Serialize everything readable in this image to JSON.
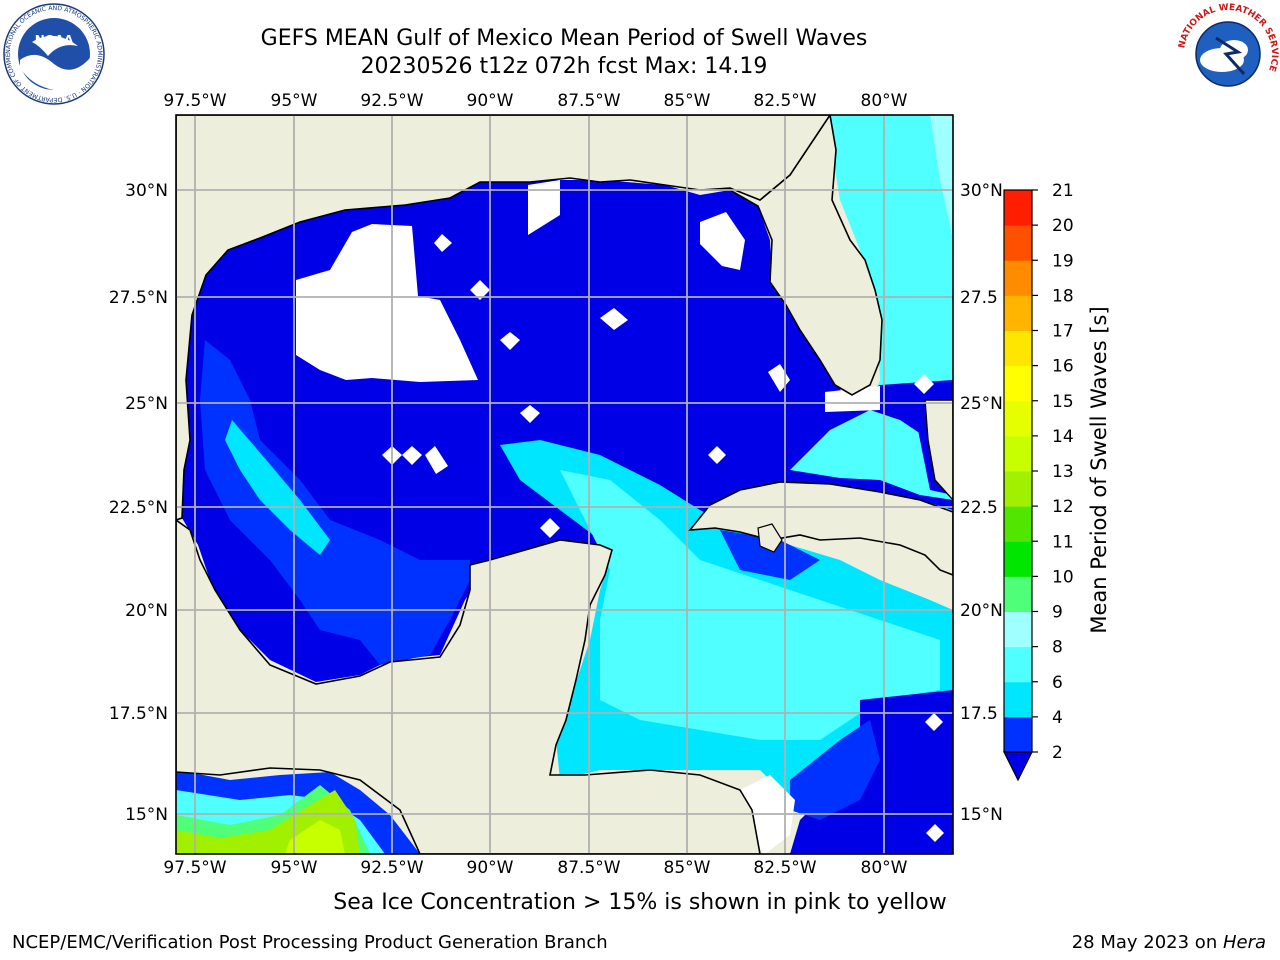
{
  "title": {
    "line1": "GEFS MEAN Gulf of Mexico Mean Period of Swell Waves",
    "line2": "20230526 t12z 072h fcst   Max: 14.19"
  },
  "logos": {
    "left": {
      "name": "noaa-logo",
      "text": "NOAA",
      "ring_text": "NATIONAL OCEANIC AND ATMOSPHERIC ADMINISTRATION · U.S. DEPARTMENT OF COMMERCE"
    },
    "right": {
      "name": "nws-logo",
      "ring_text": "NATIONAL WEATHER SERVICE"
    }
  },
  "map": {
    "lon_labels": [
      "97.5°W",
      "95°W",
      "92.5°W",
      "90°W",
      "87.5°W",
      "85°W",
      "82.5°W",
      "80°W"
    ],
    "lat_labels_left": [
      "30°N",
      "27.5°N",
      "25°N",
      "22.5°N",
      "20°N",
      "17.5°N",
      "15°N"
    ],
    "lat_labels_right": [
      "30°N",
      "27.5",
      "25°N",
      "22.5",
      "20°N",
      "17.5",
      "15°N"
    ],
    "colors": {
      "land": "#eeeedd",
      "coast": "#000000",
      "grid": "#b0b0b0",
      "missing": "#ffffff"
    }
  },
  "colorbar": {
    "label": "Mean Period of Swell Waves [s]",
    "ticks": [
      "2",
      "4",
      "6",
      "8",
      "9",
      "10",
      "11",
      "12",
      "13",
      "14",
      "15",
      "16",
      "17",
      "18",
      "19",
      "20",
      "21"
    ],
    "colors": [
      "#0032ff",
      "#00e6ff",
      "#50ffff",
      "#a0ffff",
      "#50ff78",
      "#00e600",
      "#50e600",
      "#a0f000",
      "#c8ff00",
      "#e6ff00",
      "#ffff00",
      "#ffe600",
      "#ffb400",
      "#ff8c00",
      "#ff5000",
      "#ff1e00"
    ],
    "extend_color": "#0000e6"
  },
  "note": "Sea Ice Concentration > 15% is shown in pink to yellow",
  "footer": {
    "left": "NCEP/EMC/Verification Post Processing Product Generation Branch",
    "date": "28 May 2023 on ",
    "host": "Hera"
  }
}
